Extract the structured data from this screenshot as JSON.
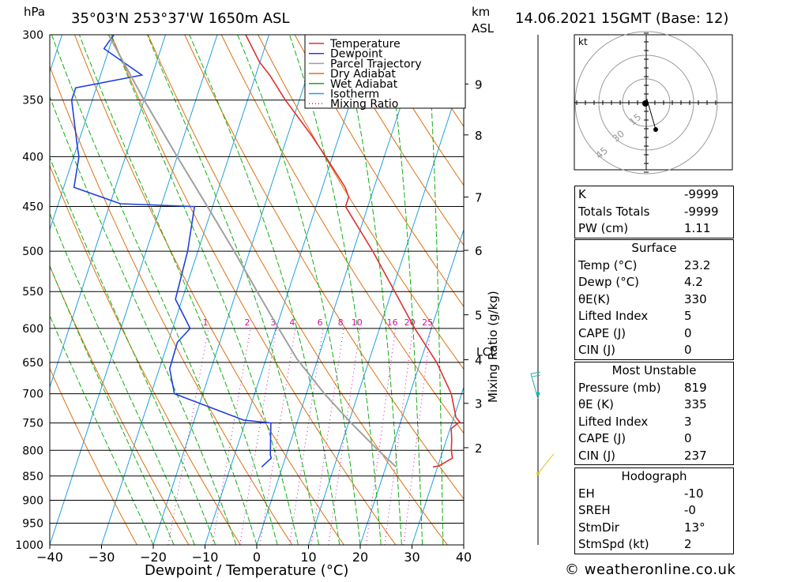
{
  "header": {
    "hpa_label": "hPa",
    "location": "35°03'N  253°37'W  1650m  ASL",
    "km_label": "km",
    "asl_label": "ASL",
    "datetime": "14.06.2021  15GMT  (Base: 12)"
  },
  "legend": [
    {
      "label": "Temperature",
      "color": "#e03030",
      "style": "solid"
    },
    {
      "label": "Dewpoint",
      "color": "#2040e0",
      "style": "solid"
    },
    {
      "label": "Parcel Trajectory",
      "color": "#a0a0a0",
      "style": "solid"
    },
    {
      "label": "Dry Adiabat",
      "color": "#e07010",
      "style": "solid"
    },
    {
      "label": "Wet Adiabat",
      "color": "#10b010",
      "style": "solid"
    },
    {
      "label": "Isotherm",
      "color": "#20a0e0",
      "style": "solid"
    },
    {
      "label": "Mixing Ratio",
      "color": "#d010a0",
      "style": "dotted"
    }
  ],
  "chart_data": {
    "type": "line",
    "title": "35°03'N  253°37'W  1650m  ASL",
    "xlabel": "Dewpoint / Temperature (°C)",
    "ylabel": "hPa",
    "xlim": [
      -40,
      40
    ],
    "ylim": [
      1000,
      300
    ],
    "x_ticks": [
      "−40",
      "−30",
      "−20",
      "−10",
      "0",
      "10",
      "20",
      "30",
      "40"
    ],
    "pressure_levels": [
      300,
      350,
      400,
      450,
      500,
      550,
      600,
      650,
      700,
      750,
      800,
      850,
      900,
      950,
      1000
    ],
    "km_ticks": [
      {
        "km": "2",
        "p": 795
      },
      {
        "km": "3",
        "p": 716
      },
      {
        "km": "4",
        "p": 646
      },
      {
        "km": "5",
        "p": 581
      },
      {
        "km": "6",
        "p": 499
      },
      {
        "km": "7",
        "p": 440
      },
      {
        "km": "8",
        "p": 380
      },
      {
        "km": "9",
        "p": 337
      }
    ],
    "lcl_label": "LCL",
    "lcl_pressure": 645,
    "mixing_ratio_label": "Mixing Ratio (g/kg)",
    "mixing_ratios": [
      1,
      2,
      3,
      4,
      6,
      8,
      10,
      16,
      20,
      25
    ],
    "isotherms_c": [
      -110,
      -100,
      -90,
      -80,
      -70,
      -60,
      -50,
      -40,
      -30,
      -20,
      -10,
      0,
      10,
      20,
      30,
      40
    ],
    "dry_adiabats_theta_k": [
      250,
      260,
      270,
      280,
      290,
      300,
      310,
      320,
      330,
      340,
      350,
      360,
      370,
      380,
      390,
      400,
      410,
      420,
      430,
      440
    ],
    "wet_adiabats_c": [
      -20,
      -16,
      -12,
      -8,
      -4,
      0,
      4,
      8,
      12,
      16,
      20,
      24,
      28,
      32,
      36
    ],
    "series": [
      {
        "name": "Temperature",
        "color": "#e03030",
        "points": [
          [
            832,
            29.1
          ],
          [
            830,
            30.2
          ],
          [
            815,
            32.3
          ],
          [
            800,
            31.6
          ],
          [
            780,
            31.0
          ],
          [
            760,
            30.2
          ],
          [
            748,
            31.4
          ],
          [
            740,
            30.4
          ],
          [
            700,
            28.0
          ],
          [
            650,
            23.2
          ],
          [
            600,
            16.8
          ],
          [
            550,
            10.6
          ],
          [
            500,
            3.8
          ],
          [
            450,
            -4.3
          ],
          [
            440,
            -4.3
          ],
          [
            430,
            -5.6
          ],
          [
            400,
            -11.3
          ],
          [
            380,
            -15.5
          ],
          [
            350,
            -22.7
          ],
          [
            330,
            -27.3
          ],
          [
            320,
            -30.1
          ],
          [
            300,
            -34.5
          ]
        ]
      },
      {
        "name": "Dewpoint",
        "color": "#2040e0",
        "points": [
          [
            832,
            -4.0
          ],
          [
            815,
            -2.7
          ],
          [
            808,
            -3.1
          ],
          [
            780,
            -4.0
          ],
          [
            750,
            -5.0
          ],
          [
            745,
            -10.4
          ],
          [
            700,
            -25.5
          ],
          [
            660,
            -28.0
          ],
          [
            620,
            -28.2
          ],
          [
            600,
            -26.6
          ],
          [
            560,
            -31.3
          ],
          [
            500,
            -32.0
          ],
          [
            450,
            -33.5
          ],
          [
            447,
            -48.0
          ],
          [
            430,
            -58.0
          ],
          [
            400,
            -59.0
          ],
          [
            390,
            -60.0
          ],
          [
            350,
            -64.0
          ],
          [
            340,
            -64.0
          ],
          [
            330,
            -52.0
          ],
          [
            310,
            -61.0
          ],
          [
            300,
            -60.0
          ]
        ]
      },
      {
        "name": "Parcel Trajectory",
        "color": "#a0a0a0",
        "points": [
          [
            832,
            22.0
          ],
          [
            800,
            17.5
          ],
          [
            750,
            10.5
          ],
          [
            700,
            3.5
          ],
          [
            645,
            -4.0
          ],
          [
            600,
            -9.5
          ],
          [
            550,
            -16.0
          ],
          [
            500,
            -23.0
          ],
          [
            450,
            -31.0
          ],
          [
            400,
            -40.0
          ],
          [
            350,
            -50.0
          ],
          [
            300,
            -61.0
          ]
        ]
      }
    ],
    "wind_profile": [
      {
        "p": 680,
        "label": "barb",
        "color": "#20b0b0"
      },
      {
        "p": 700,
        "label": "dot",
        "color": "#20b0b0"
      },
      {
        "p": 845,
        "label": "barb",
        "color": "#e0c020"
      }
    ],
    "hodograph": {
      "unit": "kt",
      "rings": [
        "15",
        "30",
        "45"
      ],
      "trace": [
        [
          0,
          0
        ],
        [
          -0.5,
          1
        ],
        [
          0.5,
          2
        ],
        [
          6,
          -17
        ]
      ]
    }
  },
  "indices": {
    "rows": [
      {
        "label": "K",
        "value": "-9999"
      },
      {
        "label": "Totals Totals",
        "value": "-9999"
      },
      {
        "label": "PW (cm)",
        "value": "1.11"
      }
    ]
  },
  "surface": {
    "title": "Surface",
    "rows": [
      {
        "label": "Temp (°C)",
        "value": "23.2"
      },
      {
        "label": "Dewp (°C)",
        "value": "4.2"
      },
      {
        "label": "θE(K)",
        "value": "330"
      },
      {
        "label": "Lifted Index",
        "value": "5"
      },
      {
        "label": "CAPE (J)",
        "value": "0"
      },
      {
        "label": "CIN (J)",
        "value": "0"
      }
    ]
  },
  "most_unstable": {
    "title": "Most Unstable",
    "rows": [
      {
        "label": "Pressure (mb)",
        "value": "819"
      },
      {
        "label": "θE (K)",
        "value": "335"
      },
      {
        "label": "Lifted Index",
        "value": "3"
      },
      {
        "label": "CAPE (J)",
        "value": "0"
      },
      {
        "label": "CIN (J)",
        "value": "237"
      }
    ]
  },
  "hodograph_table": {
    "title": "Hodograph",
    "rows": [
      {
        "label": "EH",
        "value": "-10"
      },
      {
        "label": "SREH",
        "value": "-0"
      },
      {
        "label": "StmDir",
        "value": "13°"
      },
      {
        "label": "StmSpd (kt)",
        "value": "2"
      }
    ]
  },
  "footer": "© weatheronline.co.uk"
}
